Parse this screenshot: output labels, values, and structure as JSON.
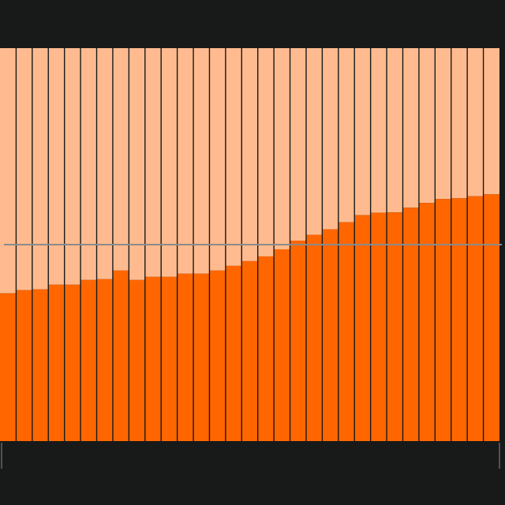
{
  "chart_data": {
    "type": "bar",
    "stacked": "percent",
    "ylim": [
      0,
      1
    ],
    "legend": "none",
    "grid": false,
    "reference_line": 0.5,
    "colors": {
      "background": "#181919",
      "series_primary": "#FF6600",
      "series_remainder": "#FFBB8F",
      "separator": "#181919",
      "reference_line": "#8A8A8A",
      "tick": "#8A8A8A"
    },
    "categories": [
      "",
      "",
      "",
      "",
      "",
      "",
      "",
      "",
      "",
      "",
      "",
      "",
      "",
      "",
      "",
      "",
      "",
      "",
      "",
      "",
      "",
      "",
      "",
      "",
      "",
      "",
      "",
      "",
      "",
      "",
      ""
    ],
    "series": [
      {
        "values": [
          0.376,
          0.384,
          0.386,
          0.398,
          0.398,
          0.41,
          0.412,
          0.434,
          0.41,
          0.418,
          0.418,
          0.426,
          0.426,
          0.434,
          0.446,
          0.458,
          0.47,
          0.488,
          0.51,
          0.525,
          0.539,
          0.557,
          0.575,
          0.581,
          0.582,
          0.594,
          0.606,
          0.616,
          0.618,
          0.623,
          0.628
        ]
      }
    ]
  }
}
